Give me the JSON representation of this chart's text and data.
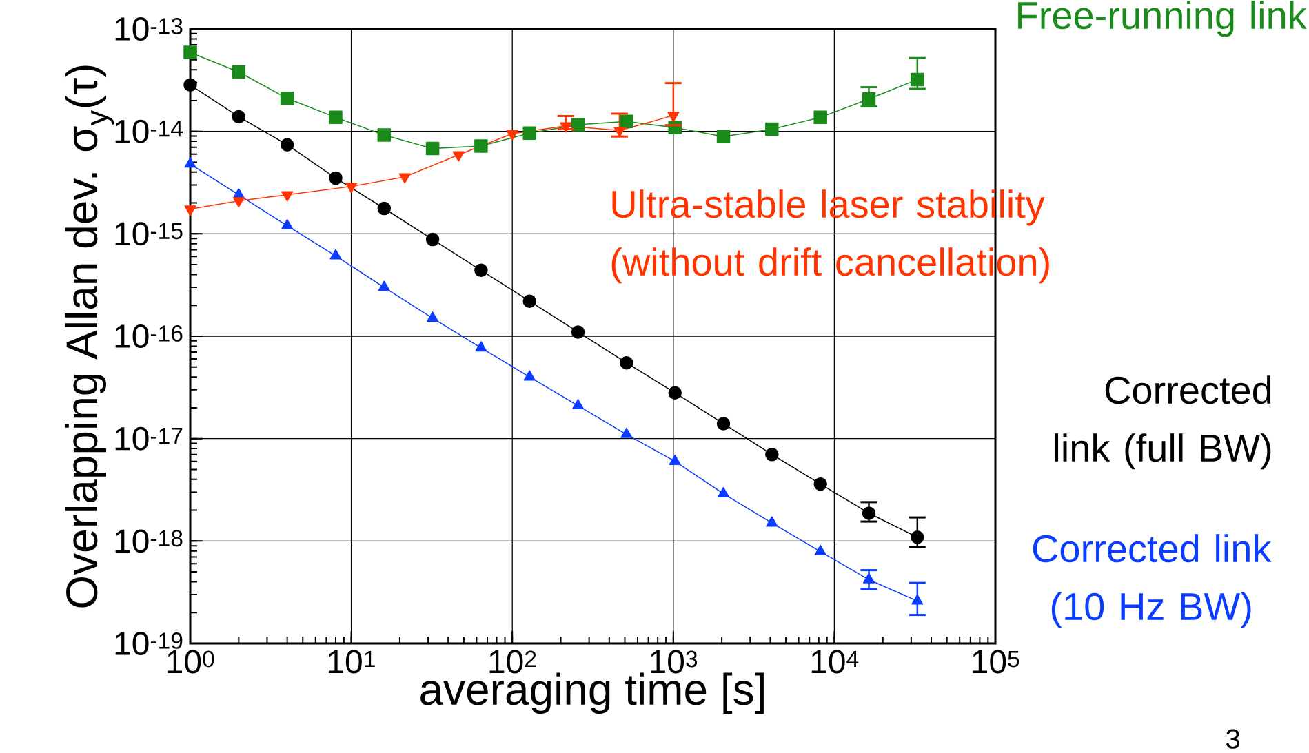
{
  "chart_data": {
    "type": "line",
    "xlabel": "averaging time [s]",
    "ylabel": "Overlapping Allan dev. σ$_{y}$(τ)",
    "log": "xy",
    "grid": true,
    "legend": false,
    "xlim": [
      1,
      100000
    ],
    "ylim": [
      1e-19,
      1e-13
    ],
    "xticks": [
      {
        "value": 1,
        "label": "10$^{0}$"
      },
      {
        "value": 10,
        "label": "10$^{1}$"
      },
      {
        "value": 100,
        "label": "10$^{2}$"
      },
      {
        "value": 1000,
        "label": "10$^{3}$"
      },
      {
        "value": 10000,
        "label": "10$^{4}$"
      },
      {
        "value": 100000,
        "label": "10$^{5}$"
      }
    ],
    "yticks": [
      {
        "value": 1e-19,
        "label": "10$^{-19}$"
      },
      {
        "value": 1e-18,
        "label": "10$^{-18}$"
      },
      {
        "value": 1e-17,
        "label": "10$^{-17}$"
      },
      {
        "value": 1e-16,
        "label": "10$^{-16}$"
      },
      {
        "value": 1e-15,
        "label": "10$^{-15}$"
      },
      {
        "value": 1e-14,
        "label": "10$^{-14}$"
      },
      {
        "value": 1e-13,
        "label": "10$^{-13}$"
      }
    ],
    "x": [
      1,
      2,
      4,
      8,
      16,
      32,
      64,
      128,
      256,
      512,
      1024,
      2048,
      4096,
      8192,
      16384,
      32768
    ],
    "series": [
      {
        "name": "Corrected link (full BW)",
        "color": "#000000",
        "marker": "circle",
        "values": [
          2.84e-14,
          1.39e-14,
          7.4e-15,
          3.5e-15,
          1.77e-15,
          8.8e-16,
          4.4e-16,
          2.2e-16,
          1.1e-16,
          5.5e-17,
          2.8e-17,
          1.4e-17,
          7e-18,
          3.6e-18,
          1.87e-18,
          1.09e-18
        ],
        "errors": [
          null,
          null,
          null,
          null,
          null,
          null,
          null,
          null,
          null,
          null,
          null,
          null,
          null,
          null,
          [
            1.55e-18,
            2.4e-18
          ],
          [
            8.8e-19,
            1.7e-18
          ]
        ]
      },
      {
        "name": "Corrected link (10 Hz BW)",
        "color": "#0a3cff",
        "marker": "triangle",
        "values": [
          4.8e-15,
          2.4e-15,
          1.2e-15,
          6.1e-16,
          3e-16,
          1.5e-16,
          7.7e-17,
          4e-17,
          2.1e-17,
          1.1e-17,
          6e-18,
          2.9e-18,
          1.5e-18,
          7.9e-19,
          4.2e-19,
          2.6e-19
        ],
        "errors": [
          null,
          null,
          null,
          null,
          null,
          null,
          null,
          null,
          null,
          null,
          null,
          null,
          null,
          null,
          [
            3.4e-19,
            5.2e-19
          ],
          [
            1.9e-19,
            3.9e-19
          ]
        ]
      },
      {
        "name": "Free-running link",
        "color": "#1a8a1a",
        "marker": "square",
        "values": [
          5.9e-14,
          3.8e-14,
          2.1e-14,
          1.37e-14,
          9.2e-15,
          6.8e-15,
          7.2e-15,
          9.6e-15,
          1.16e-14,
          1.25e-14,
          1.09e-14,
          8.9e-15,
          1.05e-14,
          1.37e-14,
          2.07e-14,
          3.2e-14
        ],
        "errors": [
          null,
          null,
          null,
          null,
          null,
          null,
          null,
          null,
          null,
          null,
          null,
          null,
          null,
          null,
          [
            1.75e-14,
            2.7e-14
          ],
          [
            2.6e-14,
            5.2e-14
          ]
        ]
      },
      {
        "name": "Ultra-stable laser stability (without drift cancellation)",
        "color": "#ff3300",
        "marker": "triangle_down",
        "x": [
          1,
          2,
          4,
          10,
          21.5,
          46.4,
          100,
          215,
          464,
          1000
        ],
        "values": [
          1.74e-15,
          2.1e-15,
          2.4e-15,
          2.9e-15,
          3.6e-15,
          5.9e-15,
          9.5e-15,
          1.13e-14,
          1.02e-14,
          1.43e-14
        ],
        "errors": [
          null,
          null,
          null,
          null,
          null,
          null,
          null,
          [
            1.05e-14,
            1.41e-14
          ],
          [
            8.9e-15,
            1.49e-14
          ],
          [
            1.15e-14,
            2.96e-14
          ]
        ]
      }
    ],
    "annotations": [
      "3"
    ]
  }
}
